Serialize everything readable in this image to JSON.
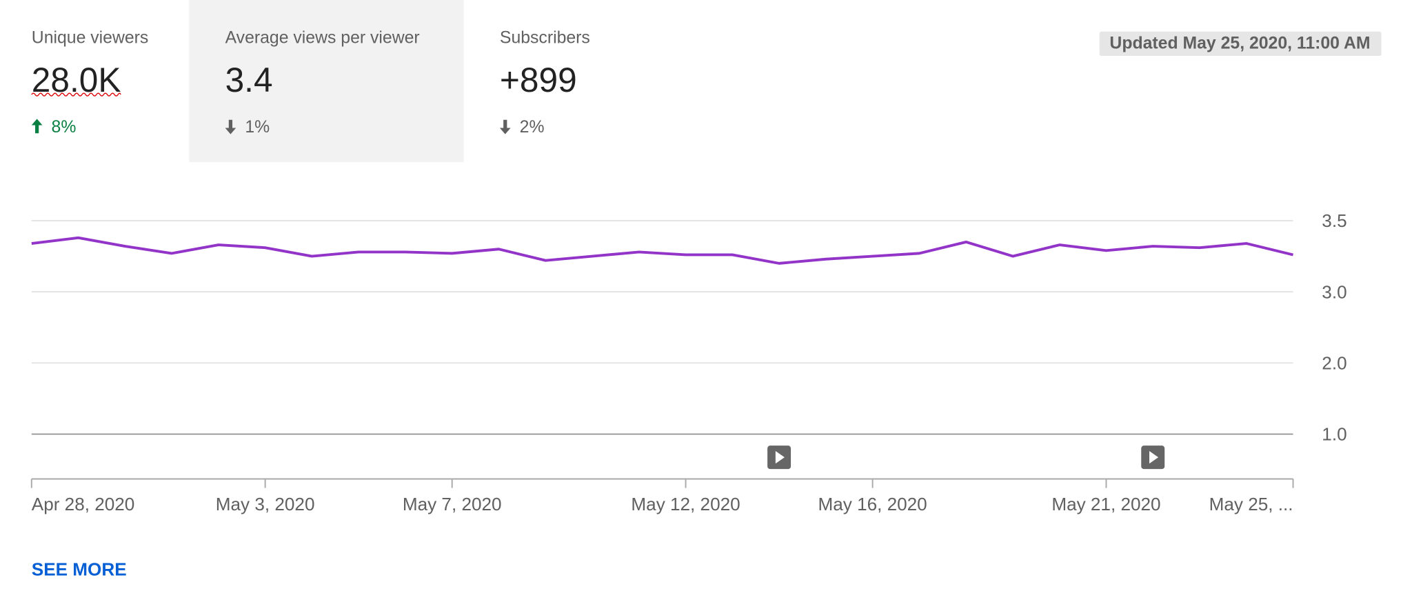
{
  "tabs": [
    {
      "label": "Unique viewers",
      "value": "28.0K",
      "change": "8%"
    },
    {
      "label": "Average views per viewer",
      "value": "3.4",
      "change": "1%"
    },
    {
      "label": "Subscribers",
      "value": "+899",
      "change": "2%"
    }
  ],
  "updated": "Updated May 25, 2020, 11:00 AM",
  "see_more": "SEE MORE",
  "chart_data": {
    "type": "line",
    "categories": [
      "Apr 28, 2020",
      null,
      null,
      null,
      null,
      "May 3, 2020",
      null,
      null,
      null,
      "May 7, 2020",
      null,
      null,
      null,
      null,
      "May 12, 2020",
      null,
      null,
      null,
      "May 16, 2020",
      null,
      null,
      null,
      null,
      "May 21, 2020",
      null,
      null,
      null,
      "May 25, ..."
    ],
    "values": [
      3.34,
      3.38,
      3.32,
      3.27,
      3.33,
      3.31,
      3.25,
      3.28,
      3.28,
      3.27,
      3.3,
      3.22,
      3.25,
      3.28,
      3.26,
      3.26,
      3.2,
      3.23,
      3.25,
      3.27,
      3.35,
      3.25,
      3.33,
      3.29,
      3.32,
      3.31,
      3.34,
      3.26
    ],
    "color": "#9334c9",
    "ylim": [
      0.37,
      3.5
    ],
    "yticks": [
      3.5,
      {
        "value": 3,
        "label": "3.0"
      },
      {
        "value": 2,
        "label": "2.0"
      },
      {
        "value": 1,
        "label": "1.0"
      }
    ],
    "grid": true
  }
}
